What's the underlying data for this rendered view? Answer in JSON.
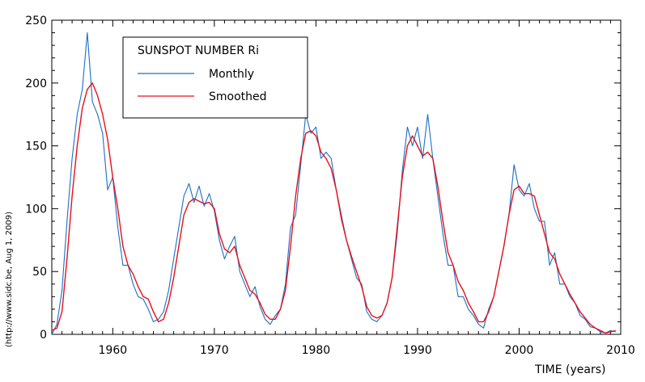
{
  "chart_data": {
    "type": "line",
    "title": "",
    "xlabel": "TIME (years)",
    "ylabel": "",
    "xlim": [
      1954,
      2010
    ],
    "ylim": [
      0,
      250
    ],
    "x_ticks": [
      1960,
      1970,
      1980,
      1990,
      2000,
      2010
    ],
    "x_tick_labels": [
      "1960",
      "1970",
      "1980",
      "1990",
      "2000",
      "2010"
    ],
    "y_ticks": [
      0,
      50,
      100,
      150,
      200,
      250
    ],
    "y_tick_labels": [
      "0",
      "50",
      "100",
      "150",
      "200",
      "250"
    ],
    "credit": "(http://www.sidc.be, Aug  1, 2009)",
    "grid": false,
    "legend": {
      "position": "top-left",
      "title": "SUNSPOT NUMBER Ri",
      "entries": [
        "Monthly",
        "Smoothed"
      ]
    },
    "series": [
      {
        "name": "Monthly",
        "color": "#1a6fc7",
        "x": [
          1954.0,
          1954.5,
          1955.0,
          1955.5,
          1956.0,
          1956.5,
          1957.0,
          1957.5,
          1958.0,
          1958.5,
          1959.0,
          1959.5,
          1960.0,
          1960.5,
          1961.0,
          1961.5,
          1962.0,
          1962.5,
          1963.0,
          1963.5,
          1964.0,
          1964.5,
          1965.0,
          1965.5,
          1966.0,
          1966.5,
          1967.0,
          1967.5,
          1968.0,
          1968.5,
          1969.0,
          1969.5,
          1970.0,
          1970.5,
          1971.0,
          1971.5,
          1972.0,
          1972.5,
          1973.0,
          1973.5,
          1974.0,
          1974.5,
          1975.0,
          1975.5,
          1976.0,
          1976.5,
          1977.0,
          1977.5,
          1978.0,
          1978.5,
          1979.0,
          1979.5,
          1980.0,
          1980.5,
          1981.0,
          1981.5,
          1982.0,
          1982.5,
          1983.0,
          1983.5,
          1984.0,
          1984.5,
          1985.0,
          1985.5,
          1986.0,
          1986.5,
          1987.0,
          1987.5,
          1988.0,
          1988.5,
          1989.0,
          1989.5,
          1990.0,
          1990.5,
          1991.0,
          1991.5,
          1992.0,
          1992.5,
          1993.0,
          1993.5,
          1994.0,
          1994.5,
          1995.0,
          1995.5,
          1996.0,
          1996.5,
          1997.0,
          1997.5,
          1998.0,
          1998.5,
          1999.0,
          1999.5,
          2000.0,
          2000.5,
          2001.0,
          2001.5,
          2002.0,
          2002.5,
          2003.0,
          2003.5,
          2004.0,
          2004.5,
          2005.0,
          2005.5,
          2006.0,
          2006.5,
          2007.0,
          2007.5,
          2008.0,
          2008.5,
          2009.0,
          2009.5
        ],
        "values": [
          0,
          8,
          35,
          90,
          140,
          175,
          195,
          240,
          185,
          175,
          160,
          115,
          125,
          85,
          55,
          55,
          40,
          30,
          28,
          20,
          10,
          12,
          18,
          35,
          60,
          85,
          110,
          120,
          105,
          118,
          102,
          112,
          98,
          75,
          60,
          70,
          78,
          50,
          40,
          30,
          38,
          22,
          12,
          8,
          15,
          20,
          40,
          85,
          95,
          135,
          175,
          160,
          165,
          140,
          145,
          140,
          115,
          95,
          75,
          60,
          45,
          40,
          18,
          12,
          10,
          15,
          25,
          45,
          80,
          130,
          165,
          150,
          165,
          140,
          175,
          140,
          110,
          80,
          55,
          55,
          30,
          30,
          20,
          15,
          8,
          5,
          20,
          30,
          50,
          70,
          95,
          135,
          115,
          110,
          120,
          100,
          90,
          90,
          55,
          65,
          40,
          40,
          30,
          25,
          15,
          12,
          6,
          5,
          2,
          1,
          3,
          2
        ]
      },
      {
        "name": "Smoothed",
        "color": "#e8101a",
        "x": [
          1954.0,
          1954.5,
          1955.0,
          1955.5,
          1956.0,
          1956.5,
          1957.0,
          1957.5,
          1958.0,
          1958.5,
          1959.0,
          1959.5,
          1960.0,
          1960.5,
          1961.0,
          1961.5,
          1962.0,
          1962.5,
          1963.0,
          1963.5,
          1964.0,
          1964.5,
          1965.0,
          1965.5,
          1966.0,
          1966.5,
          1967.0,
          1967.5,
          1968.0,
          1968.5,
          1969.0,
          1969.5,
          1970.0,
          1970.5,
          1971.0,
          1971.5,
          1972.0,
          1972.5,
          1973.0,
          1973.5,
          1974.0,
          1974.5,
          1975.0,
          1975.5,
          1976.0,
          1976.5,
          1977.0,
          1977.5,
          1978.0,
          1978.5,
          1979.0,
          1979.5,
          1980.0,
          1980.5,
          1981.0,
          1981.5,
          1982.0,
          1982.5,
          1983.0,
          1983.5,
          1984.0,
          1984.5,
          1985.0,
          1985.5,
          1986.0,
          1986.5,
          1987.0,
          1987.5,
          1988.0,
          1988.5,
          1989.0,
          1989.5,
          1990.0,
          1990.5,
          1991.0,
          1991.5,
          1992.0,
          1992.5,
          1993.0,
          1993.5,
          1994.0,
          1994.5,
          1995.0,
          1995.5,
          1996.0,
          1996.5,
          1997.0,
          1997.5,
          1998.0,
          1998.5,
          1999.0,
          1999.5,
          2000.0,
          2000.5,
          2001.0,
          2001.5,
          2002.0,
          2002.5,
          2003.0,
          2003.5,
          2004.0,
          2004.5,
          2005.0,
          2005.5,
          2006.0,
          2006.5,
          2007.0,
          2007.5,
          2008.0,
          2008.5,
          2009.0,
          2009.5
        ],
        "values": [
          3,
          5,
          18,
          60,
          110,
          150,
          180,
          195,
          200,
          190,
          175,
          155,
          125,
          100,
          70,
          55,
          48,
          38,
          30,
          28,
          18,
          10,
          12,
          25,
          45,
          70,
          95,
          105,
          108,
          106,
          104,
          105,
          100,
          80,
          68,
          65,
          70,
          55,
          45,
          35,
          32,
          25,
          16,
          12,
          12,
          20,
          35,
          70,
          110,
          140,
          160,
          162,
          158,
          145,
          140,
          132,
          115,
          92,
          75,
          62,
          50,
          38,
          22,
          15,
          13,
          15,
          25,
          45,
          85,
          125,
          150,
          158,
          150,
          142,
          145,
          140,
          118,
          90,
          65,
          55,
          42,
          35,
          25,
          18,
          10,
          10,
          18,
          30,
          50,
          70,
          95,
          115,
          118,
          112,
          112,
          110,
          95,
          80,
          65,
          60,
          48,
          40,
          32,
          25,
          18,
          13,
          8,
          5,
          3,
          1,
          2,
          3
        ]
      }
    ]
  }
}
